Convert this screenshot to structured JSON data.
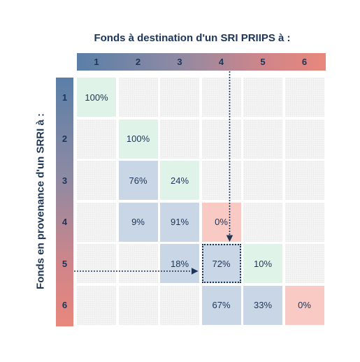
{
  "chart_data": {
    "type": "table",
    "title": "Fonds à destination d'un SRI PRIIPS à :",
    "row_axis_title": "Fonds en provenance d'un SRRI à :",
    "column_labels": [
      "1",
      "2",
      "3",
      "4",
      "5",
      "6"
    ],
    "row_labels": [
      "1",
      "2",
      "3",
      "4",
      "5",
      "6"
    ],
    "cells": [
      [
        "100%",
        "",
        "",
        "",
        "",
        ""
      ],
      [
        "",
        "100%",
        "",
        "",
        "",
        ""
      ],
      [
        "",
        "76%",
        "24%",
        "",
        "",
        ""
      ],
      [
        "",
        "9%",
        "91%",
        "0%",
        "",
        ""
      ],
      [
        "",
        "",
        "18%",
        "72%",
        "10%",
        ""
      ],
      [
        "",
        "",
        "",
        "67%",
        "33%",
        "0%"
      ]
    ],
    "cell_colors": [
      [
        "green",
        "empty",
        "empty",
        "empty",
        "empty",
        "empty"
      ],
      [
        "empty",
        "green",
        "empty",
        "empty",
        "empty",
        "empty"
      ],
      [
        "empty",
        "blue",
        "green",
        "empty",
        "empty",
        "empty"
      ],
      [
        "empty",
        "blue",
        "blue",
        "red",
        "empty",
        "empty"
      ],
      [
        "empty",
        "empty",
        "blue",
        "blue",
        "green",
        "empty"
      ],
      [
        "empty",
        "empty",
        "empty",
        "blue",
        "blue",
        "red"
      ]
    ],
    "highlighted_cell": {
      "row": "5",
      "column": "4"
    },
    "colors": {
      "gradient_start": "#5a7fa8",
      "gradient_end": "#e8877c",
      "blue": "#c9d6e6",
      "green": "#dff3e8",
      "red": "#f9c9c4",
      "text": "#1d3557"
    }
  }
}
